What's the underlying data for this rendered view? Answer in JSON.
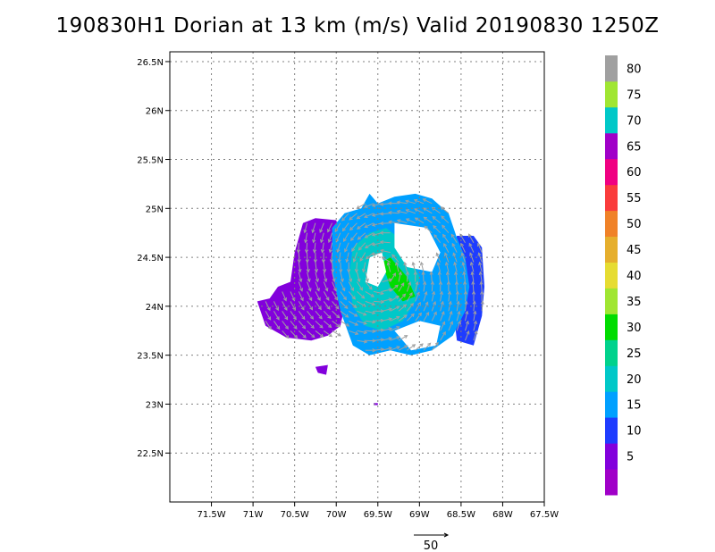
{
  "chart_data": {
    "type": "heatmap",
    "title": "190830H1 Dorian at 13 km (m/s) Valid 20190830  1250Z",
    "xlabel": "",
    "ylabel": "",
    "xlim": [
      -72.0,
      -67.5
    ],
    "ylim": [
      22.0,
      26.6
    ],
    "x_ticks": [
      {
        "value": -71.5,
        "label": "71.5W"
      },
      {
        "value": -71.0,
        "label": "71W"
      },
      {
        "value": -70.5,
        "label": "70.5W"
      },
      {
        "value": -70.0,
        "label": "70W"
      },
      {
        "value": -69.5,
        "label": "69.5W"
      },
      {
        "value": -69.0,
        "label": "69W"
      },
      {
        "value": -68.5,
        "label": "68.5W"
      },
      {
        "value": -68.0,
        "label": "68W"
      },
      {
        "value": -67.5,
        "label": "67.5W"
      }
    ],
    "y_ticks": [
      {
        "value": 22.5,
        "label": "22.5N"
      },
      {
        "value": 23.0,
        "label": "23N"
      },
      {
        "value": 23.5,
        "label": "23.5N"
      },
      {
        "value": 24.0,
        "label": "24N"
      },
      {
        "value": 24.5,
        "label": "24.5N"
      },
      {
        "value": 25.0,
        "label": "25N"
      },
      {
        "value": 25.5,
        "label": "25.5N"
      },
      {
        "value": 26.0,
        "label": "26N"
      },
      {
        "value": 26.5,
        "label": "26.5N"
      }
    ],
    "grid": true,
    "colorbar": {
      "levels": [
        {
          "label": "",
          "color": "#a000c8"
        },
        {
          "label": "5",
          "color": "#8200dc"
        },
        {
          "label": "10",
          "color": "#1e3cff"
        },
        {
          "label": "15",
          "color": "#00a0ff"
        },
        {
          "label": "20",
          "color": "#00c8c8"
        },
        {
          "label": "25",
          "color": "#00d28c"
        },
        {
          "label": "30",
          "color": "#00dc00"
        },
        {
          "label": "35",
          "color": "#a0e632"
        },
        {
          "label": "40",
          "color": "#e6dc32"
        },
        {
          "label": "45",
          "color": "#e6af2d"
        },
        {
          "label": "50",
          "color": "#f08228"
        },
        {
          "label": "55",
          "color": "#fa3c3c"
        },
        {
          "label": "60",
          "color": "#f00082"
        },
        {
          "label": "65",
          "color": "#a000c8"
        },
        {
          "label": "70",
          "color": "#00c8c8"
        },
        {
          "label": "75",
          "color": "#a0e632"
        },
        {
          "label": "80",
          "color": "#a0a0a0"
        }
      ]
    },
    "wind_regions": [
      {
        "name": "outer-west",
        "level": "5",
        "polygon": [
          [
            -70.95,
            24.05
          ],
          [
            -70.8,
            24.08
          ],
          [
            -70.7,
            24.2
          ],
          [
            -70.55,
            24.25
          ],
          [
            -70.5,
            24.55
          ],
          [
            -70.4,
            24.85
          ],
          [
            -70.25,
            24.9
          ],
          [
            -70.0,
            24.88
          ],
          [
            -69.9,
            24.6
          ],
          [
            -69.85,
            24.2
          ],
          [
            -69.95,
            23.8
          ],
          [
            -70.1,
            23.7
          ],
          [
            -70.3,
            23.65
          ],
          [
            -70.6,
            23.68
          ],
          [
            -70.85,
            23.8
          ]
        ]
      },
      {
        "name": "outer-east",
        "level": "10",
        "polygon": [
          [
            -68.55,
            24.72
          ],
          [
            -68.35,
            24.72
          ],
          [
            -68.25,
            24.6
          ],
          [
            -68.22,
            24.2
          ],
          [
            -68.25,
            23.9
          ],
          [
            -68.35,
            23.6
          ],
          [
            -68.55,
            23.65
          ],
          [
            -68.6,
            24.0
          ],
          [
            -68.65,
            24.4
          ]
        ]
      },
      {
        "name": "main-band",
        "level": "15",
        "polygon": [
          [
            -70.05,
            24.8
          ],
          [
            -69.9,
            24.95
          ],
          [
            -69.7,
            25.0
          ],
          [
            -69.6,
            25.15
          ],
          [
            -69.5,
            25.05
          ],
          [
            -69.3,
            25.12
          ],
          [
            -69.05,
            25.15
          ],
          [
            -68.85,
            25.1
          ],
          [
            -68.65,
            24.95
          ],
          [
            -68.55,
            24.7
          ],
          [
            -68.45,
            24.5
          ],
          [
            -68.4,
            24.2
          ],
          [
            -68.45,
            23.95
          ],
          [
            -68.6,
            23.7
          ],
          [
            -68.85,
            23.55
          ],
          [
            -69.1,
            23.5
          ],
          [
            -69.35,
            23.55
          ],
          [
            -69.6,
            23.5
          ],
          [
            -69.8,
            23.6
          ],
          [
            -69.95,
            23.95
          ],
          [
            -70.05,
            24.35
          ]
        ]
      },
      {
        "name": "inner-band",
        "level": "20",
        "polygon": [
          [
            -69.8,
            24.6
          ],
          [
            -69.6,
            24.75
          ],
          [
            -69.4,
            24.8
          ],
          [
            -69.25,
            24.7
          ],
          [
            -69.1,
            24.5
          ],
          [
            -69.0,
            24.3
          ],
          [
            -69.05,
            24.05
          ],
          [
            -69.2,
            23.85
          ],
          [
            -69.45,
            23.75
          ],
          [
            -69.65,
            23.8
          ],
          [
            -69.8,
            24.0
          ],
          [
            -69.85,
            24.3
          ]
        ]
      },
      {
        "name": "core-max",
        "level": "30",
        "polygon": [
          [
            -69.45,
            24.45
          ],
          [
            -69.35,
            24.5
          ],
          [
            -69.15,
            24.3
          ],
          [
            -69.05,
            24.1
          ],
          [
            -69.2,
            24.05
          ],
          [
            -69.35,
            24.2
          ]
        ]
      },
      {
        "name": "eye",
        "level": "",
        "polygon": [
          [
            -69.6,
            24.5
          ],
          [
            -69.45,
            24.55
          ],
          [
            -69.4,
            24.35
          ],
          [
            -69.5,
            24.2
          ],
          [
            -69.65,
            24.25
          ]
        ]
      },
      {
        "name": "north-gap",
        "level": "",
        "polygon": [
          [
            -69.3,
            24.85
          ],
          [
            -68.9,
            24.8
          ],
          [
            -68.75,
            24.55
          ],
          [
            -68.85,
            24.35
          ],
          [
            -69.15,
            24.4
          ],
          [
            -69.3,
            24.6
          ]
        ]
      },
      {
        "name": "south-gap",
        "level": "",
        "polygon": [
          [
            -69.3,
            23.75
          ],
          [
            -69.0,
            23.85
          ],
          [
            -68.75,
            23.8
          ],
          [
            -68.8,
            23.6
          ],
          [
            -69.1,
            23.55
          ]
        ]
      }
    ],
    "wind_patches": [
      {
        "name": "patch-1",
        "level": "5",
        "polygon": [
          [
            -70.25,
            23.38
          ],
          [
            -70.1,
            23.4
          ],
          [
            -70.12,
            23.3
          ],
          [
            -70.22,
            23.32
          ]
        ]
      },
      {
        "name": "patch-2",
        "level": "5",
        "polygon": [
          [
            -69.55,
            23.01
          ],
          [
            -69.5,
            23.01
          ],
          [
            -69.5,
            22.99
          ],
          [
            -69.55,
            22.99
          ]
        ]
      }
    ],
    "vector_field": {
      "center": [
        -69.45,
        24.35
      ],
      "rotation": "counterclockwise",
      "spacing_degrees": 0.1,
      "color": "#a0a0a0",
      "reference_vector": {
        "magnitude": 50,
        "label": "50"
      }
    }
  }
}
